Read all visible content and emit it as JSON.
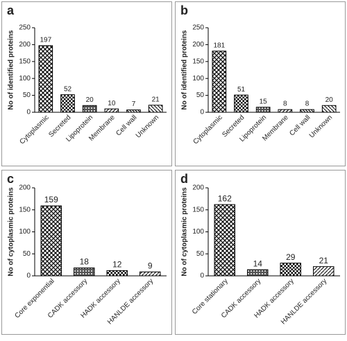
{
  "chart_data": [
    {
      "type": "bar",
      "title": "a",
      "y_label": "No of identified proteins",
      "categories": [
        "Cytoplasmic",
        "Secreted",
        "Lipoprotein",
        "Membrane",
        "Cell wall",
        "Unknown"
      ],
      "values": [
        197,
        52,
        20,
        10,
        7,
        21
      ],
      "ylim": [
        0,
        250
      ],
      "yticks": [
        0,
        50,
        100,
        150,
        200,
        250
      ]
    },
    {
      "type": "bar",
      "title": "b",
      "y_label": "No of identified proteins",
      "categories": [
        "Cytoplasmic",
        "Secreted",
        "Lipoprotein",
        "Membrane",
        "Cell wall",
        "Unknown"
      ],
      "values": [
        181,
        51,
        15,
        8,
        8,
        20
      ],
      "ylim": [
        0,
        250
      ],
      "yticks": [
        0,
        50,
        100,
        150,
        200,
        250
      ]
    },
    {
      "type": "bar",
      "title": "c",
      "y_label": "No of cytoplasmic proteins",
      "categories": [
        "Core exponential",
        "CADK accessory",
        "HADK accessory",
        "HANLDE accessory"
      ],
      "values": [
        159,
        18,
        12,
        9
      ],
      "ylim": [
        0,
        200
      ],
      "yticks": [
        0,
        50,
        100,
        150,
        200
      ]
    },
    {
      "type": "bar",
      "title": "d",
      "y_label": "No of cytoplasmic proteins",
      "categories": [
        "Core stationary",
        "CADK accessory",
        "HADK accessory",
        "HANLDE accessory"
      ],
      "values": [
        162,
        14,
        29,
        21
      ],
      "ylim": [
        0,
        200
      ],
      "yticks": [
        0,
        50,
        100,
        150,
        200
      ]
    }
  ]
}
